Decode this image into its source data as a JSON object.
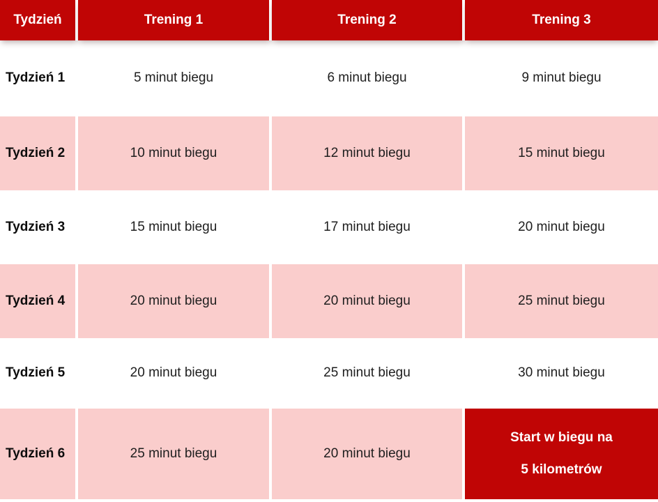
{
  "table": {
    "headers": [
      "Tydzień",
      "Trening 1",
      "Trening 2",
      "Trening 3"
    ],
    "rows": [
      {
        "week": "Tydzień 1",
        "t1": "5 minut biegu",
        "t2": "6 minut biegu",
        "t3": "9 minut biegu"
      },
      {
        "week": "Tydzień 2",
        "t1": "10 minut biegu",
        "t2": "12 minut biegu",
        "t3": "15 minut biegu"
      },
      {
        "week": "Tydzień 3",
        "t1": "15 minut biegu",
        "t2": "17 minut biegu",
        "t3": "20 minut biegu"
      },
      {
        "week": "Tydzień 4",
        "t1": "20 minut biegu",
        "t2": "20 minut biegu",
        "t3": "25 minut biegu"
      },
      {
        "week": "Tydzień 5",
        "t1": "20 minut biegu",
        "t2": "25 minut biegu",
        "t3": "30 minut biegu"
      },
      {
        "week": "Tydzień 6",
        "t1": "25 minut biegu",
        "t2": "20 minut biegu",
        "t3_highlight_lines": [
          "Start w biegu na",
          "5 kilometrów"
        ]
      }
    ],
    "colors": {
      "header_bg": "#c00505",
      "header_text": "#ffffff",
      "pink_row_bg": "#facdcc",
      "white_row_bg": "#ffffff",
      "highlight_bg": "#c00505",
      "highlight_text": "#ffffff",
      "body_text": "#1e1e1e"
    }
  }
}
